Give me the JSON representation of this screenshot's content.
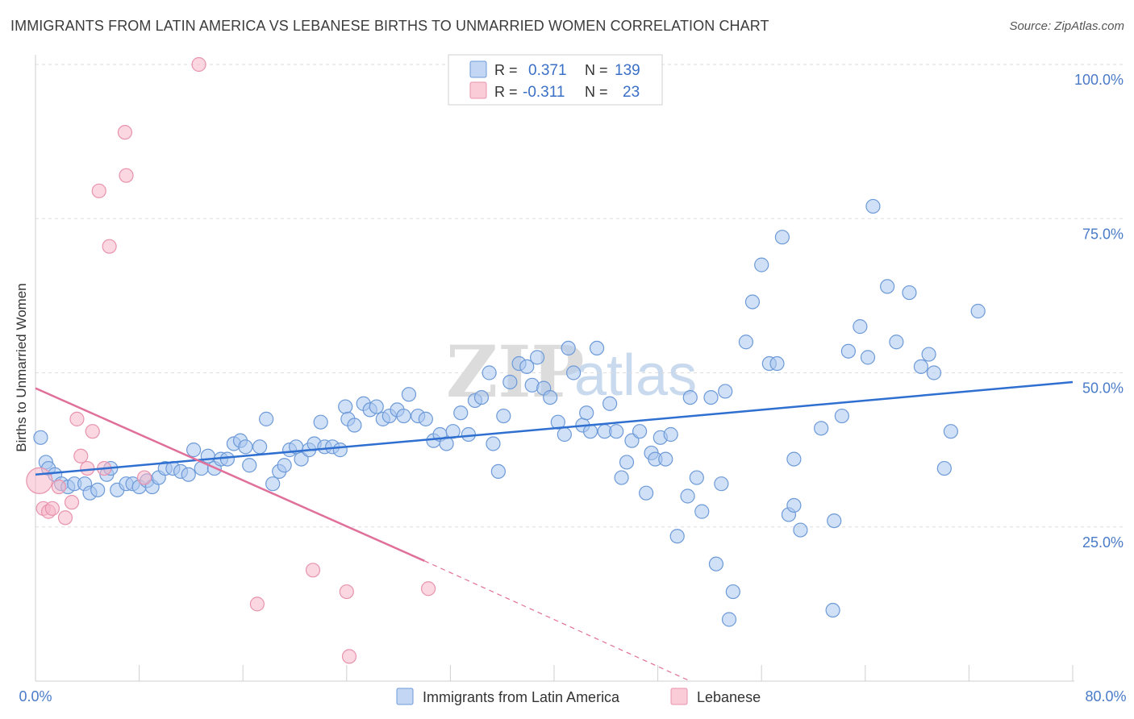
{
  "header": {
    "title": "IMMIGRANTS FROM LATIN AMERICA VS LEBANESE BIRTHS TO UNMARRIED WOMEN CORRELATION CHART",
    "source": "Source: ZipAtlas.com"
  },
  "watermark": {
    "zip": "ZIP",
    "atlas": "atlas"
  },
  "legend": {
    "rows": [
      {
        "r_label": "R =",
        "r_value": "0.371",
        "n_label": "N =",
        "n_value": "139",
        "color": "#a9c6ef"
      },
      {
        "r_label": "R =",
        "r_value": "-0.311",
        "n_label": "N =",
        "n_value": "23",
        "color": "#f6b6c8"
      }
    ]
  },
  "bottom_legend": {
    "items": [
      {
        "label": "Immigrants from Latin America",
        "color": "#a9c6ef"
      },
      {
        "label": "Lebanese",
        "color": "#f6b6c8"
      }
    ]
  },
  "chart_data": {
    "type": "scatter",
    "title": "IMMIGRANTS FROM LATIN AMERICA VS LEBANESE BIRTHS TO UNMARRIED WOMEN CORRELATION CHART",
    "xlabel": "",
    "ylabel": "Births to Unmarried Women",
    "xlim": [
      0,
      80
    ],
    "ylim": [
      0,
      100
    ],
    "x_tick_labels": {
      "min": "0.0%",
      "max": "80.0%"
    },
    "y_ticks": [
      {
        "value": 25,
        "label": "25.0%"
      },
      {
        "value": 50,
        "label": "50.0%"
      },
      {
        "value": 75,
        "label": "75.0%"
      },
      {
        "value": 100,
        "label": "100.0%"
      }
    ],
    "series": [
      {
        "name": "Immigrants from Latin America",
        "color": "#a9c6ef",
        "stroke": "#6d9ad8",
        "line_color": "#2f6fd0",
        "trend": {
          "x": [
            0,
            80
          ],
          "y": [
            33.5,
            48.5
          ],
          "dashed_from": null
        },
        "points": [
          [
            0.4,
            39.5
          ],
          [
            0.8,
            35.5
          ],
          [
            1.0,
            34.5
          ],
          [
            1.5,
            33.5
          ],
          [
            2.0,
            32.0
          ],
          [
            2.5,
            31.5
          ],
          [
            3.0,
            32.0
          ],
          [
            3.8,
            32.0
          ],
          [
            4.2,
            30.5
          ],
          [
            4.8,
            31.0
          ],
          [
            5.5,
            33.5
          ],
          [
            5.8,
            34.5
          ],
          [
            6.3,
            31.0
          ],
          [
            7.0,
            32.0
          ],
          [
            7.5,
            32.0
          ],
          [
            8.0,
            31.5
          ],
          [
            8.6,
            32.5
          ],
          [
            9.0,
            31.5
          ],
          [
            9.5,
            33.0
          ],
          [
            10.0,
            34.5
          ],
          [
            10.6,
            34.5
          ],
          [
            11.2,
            34.0
          ],
          [
            11.8,
            33.5
          ],
          [
            12.2,
            37.5
          ],
          [
            12.8,
            34.5
          ],
          [
            13.3,
            36.5
          ],
          [
            13.8,
            34.5
          ],
          [
            14.3,
            36.0
          ],
          [
            14.8,
            36.0
          ],
          [
            15.3,
            38.5
          ],
          [
            15.8,
            39.0
          ],
          [
            16.2,
            38.0
          ],
          [
            16.5,
            35.0
          ],
          [
            17.3,
            38.0
          ],
          [
            17.8,
            42.5
          ],
          [
            18.3,
            32.0
          ],
          [
            18.8,
            34.0
          ],
          [
            19.2,
            35.0
          ],
          [
            19.6,
            37.5
          ],
          [
            20.1,
            38.0
          ],
          [
            20.5,
            36.0
          ],
          [
            21.1,
            37.5
          ],
          [
            21.5,
            38.5
          ],
          [
            22.0,
            42.0
          ],
          [
            22.3,
            38.0
          ],
          [
            22.9,
            38.0
          ],
          [
            23.5,
            37.5
          ],
          [
            23.9,
            44.5
          ],
          [
            24.1,
            42.5
          ],
          [
            24.6,
            41.5
          ],
          [
            25.3,
            45.0
          ],
          [
            25.8,
            44.0
          ],
          [
            26.3,
            44.5
          ],
          [
            26.8,
            42.5
          ],
          [
            27.3,
            43.0
          ],
          [
            27.9,
            44.0
          ],
          [
            28.4,
            43.0
          ],
          [
            28.8,
            46.5
          ],
          [
            29.5,
            43.0
          ],
          [
            30.1,
            42.5
          ],
          [
            30.7,
            39.0
          ],
          [
            31.2,
            40.0
          ],
          [
            31.7,
            38.5
          ],
          [
            32.2,
            40.5
          ],
          [
            32.8,
            43.5
          ],
          [
            33.4,
            40.0
          ],
          [
            33.9,
            45.5
          ],
          [
            34.4,
            46.0
          ],
          [
            35.0,
            50.0
          ],
          [
            35.3,
            38.5
          ],
          [
            35.7,
            34.0
          ],
          [
            36.1,
            43.0
          ],
          [
            36.6,
            48.5
          ],
          [
            37.3,
            51.5
          ],
          [
            37.9,
            51.0
          ],
          [
            38.3,
            48.0
          ],
          [
            38.7,
            52.5
          ],
          [
            39.2,
            47.5
          ],
          [
            39.7,
            46.0
          ],
          [
            40.3,
            42.0
          ],
          [
            40.8,
            40.0
          ],
          [
            41.1,
            54.0
          ],
          [
            41.5,
            50.0
          ],
          [
            42.2,
            41.5
          ],
          [
            42.5,
            43.5
          ],
          [
            42.8,
            40.5
          ],
          [
            43.3,
            54.0
          ],
          [
            43.9,
            40.5
          ],
          [
            44.3,
            45.0
          ],
          [
            44.8,
            40.5
          ],
          [
            45.2,
            33.0
          ],
          [
            45.6,
            35.5
          ],
          [
            46.0,
            39.0
          ],
          [
            46.6,
            40.5
          ],
          [
            47.1,
            30.5
          ],
          [
            47.5,
            37.0
          ],
          [
            47.8,
            36.0
          ],
          [
            48.2,
            39.5
          ],
          [
            48.6,
            36.0
          ],
          [
            49.0,
            40.0
          ],
          [
            49.5,
            23.5
          ],
          [
            50.3,
            30.0
          ],
          [
            50.5,
            46.0
          ],
          [
            51.4,
            27.5
          ],
          [
            52.1,
            46.0
          ],
          [
            52.5,
            19.0
          ],
          [
            52.9,
            32.0
          ],
          [
            53.2,
            47.0
          ],
          [
            53.8,
            14.5
          ],
          [
            54.8,
            55.0
          ],
          [
            55.3,
            61.5
          ],
          [
            56.0,
            67.5
          ],
          [
            56.6,
            51.5
          ],
          [
            57.2,
            51.5
          ],
          [
            57.6,
            72.0
          ],
          [
            58.1,
            27.0
          ],
          [
            58.5,
            36.0
          ],
          [
            59.0,
            24.5
          ],
          [
            60.6,
            41.0
          ],
          [
            61.6,
            26.0
          ],
          [
            62.2,
            43.0
          ],
          [
            62.7,
            53.5
          ],
          [
            63.6,
            57.5
          ],
          [
            64.2,
            52.5
          ],
          [
            64.6,
            77.0
          ],
          [
            65.7,
            64.0
          ],
          [
            66.4,
            55.0
          ],
          [
            67.4,
            63.0
          ],
          [
            68.3,
            51.0
          ],
          [
            68.9,
            53.0
          ],
          [
            69.3,
            50.0
          ],
          [
            70.1,
            34.5
          ],
          [
            70.6,
            40.5
          ],
          [
            72.7,
            60.0
          ],
          [
            58.5,
            28.5
          ],
          [
            53.5,
            10.0
          ],
          [
            61.5,
            11.5
          ],
          [
            51.0,
            33.0
          ]
        ]
      },
      {
        "name": "Lebanese",
        "color": "#f6b6c8",
        "stroke": "#e893ad",
        "line_color": "#e07099",
        "trend": {
          "x": [
            0,
            30
          ],
          "y": [
            47.5,
            19.5
          ],
          "dashed_to": {
            "x": 50.5,
            "y": 0
          }
        },
        "points": [
          [
            0.3,
            32.5
          ],
          [
            0.6,
            28.0
          ],
          [
            1.0,
            27.5
          ],
          [
            1.3,
            28.0
          ],
          [
            1.8,
            31.5
          ],
          [
            2.3,
            26.5
          ],
          [
            2.8,
            29.0
          ],
          [
            3.2,
            42.5
          ],
          [
            3.5,
            36.5
          ],
          [
            4.0,
            34.5
          ],
          [
            4.4,
            40.5
          ],
          [
            4.9,
            79.5
          ],
          [
            5.3,
            34.5
          ],
          [
            5.7,
            70.5
          ],
          [
            6.9,
            89.0
          ],
          [
            7.0,
            82.0
          ],
          [
            8.4,
            33.0
          ],
          [
            12.6,
            100.0
          ],
          [
            17.1,
            12.5
          ],
          [
            21.4,
            18.0
          ],
          [
            24.0,
            14.5
          ],
          [
            24.2,
            4.0
          ],
          [
            30.3,
            15.0
          ]
        ]
      }
    ]
  }
}
